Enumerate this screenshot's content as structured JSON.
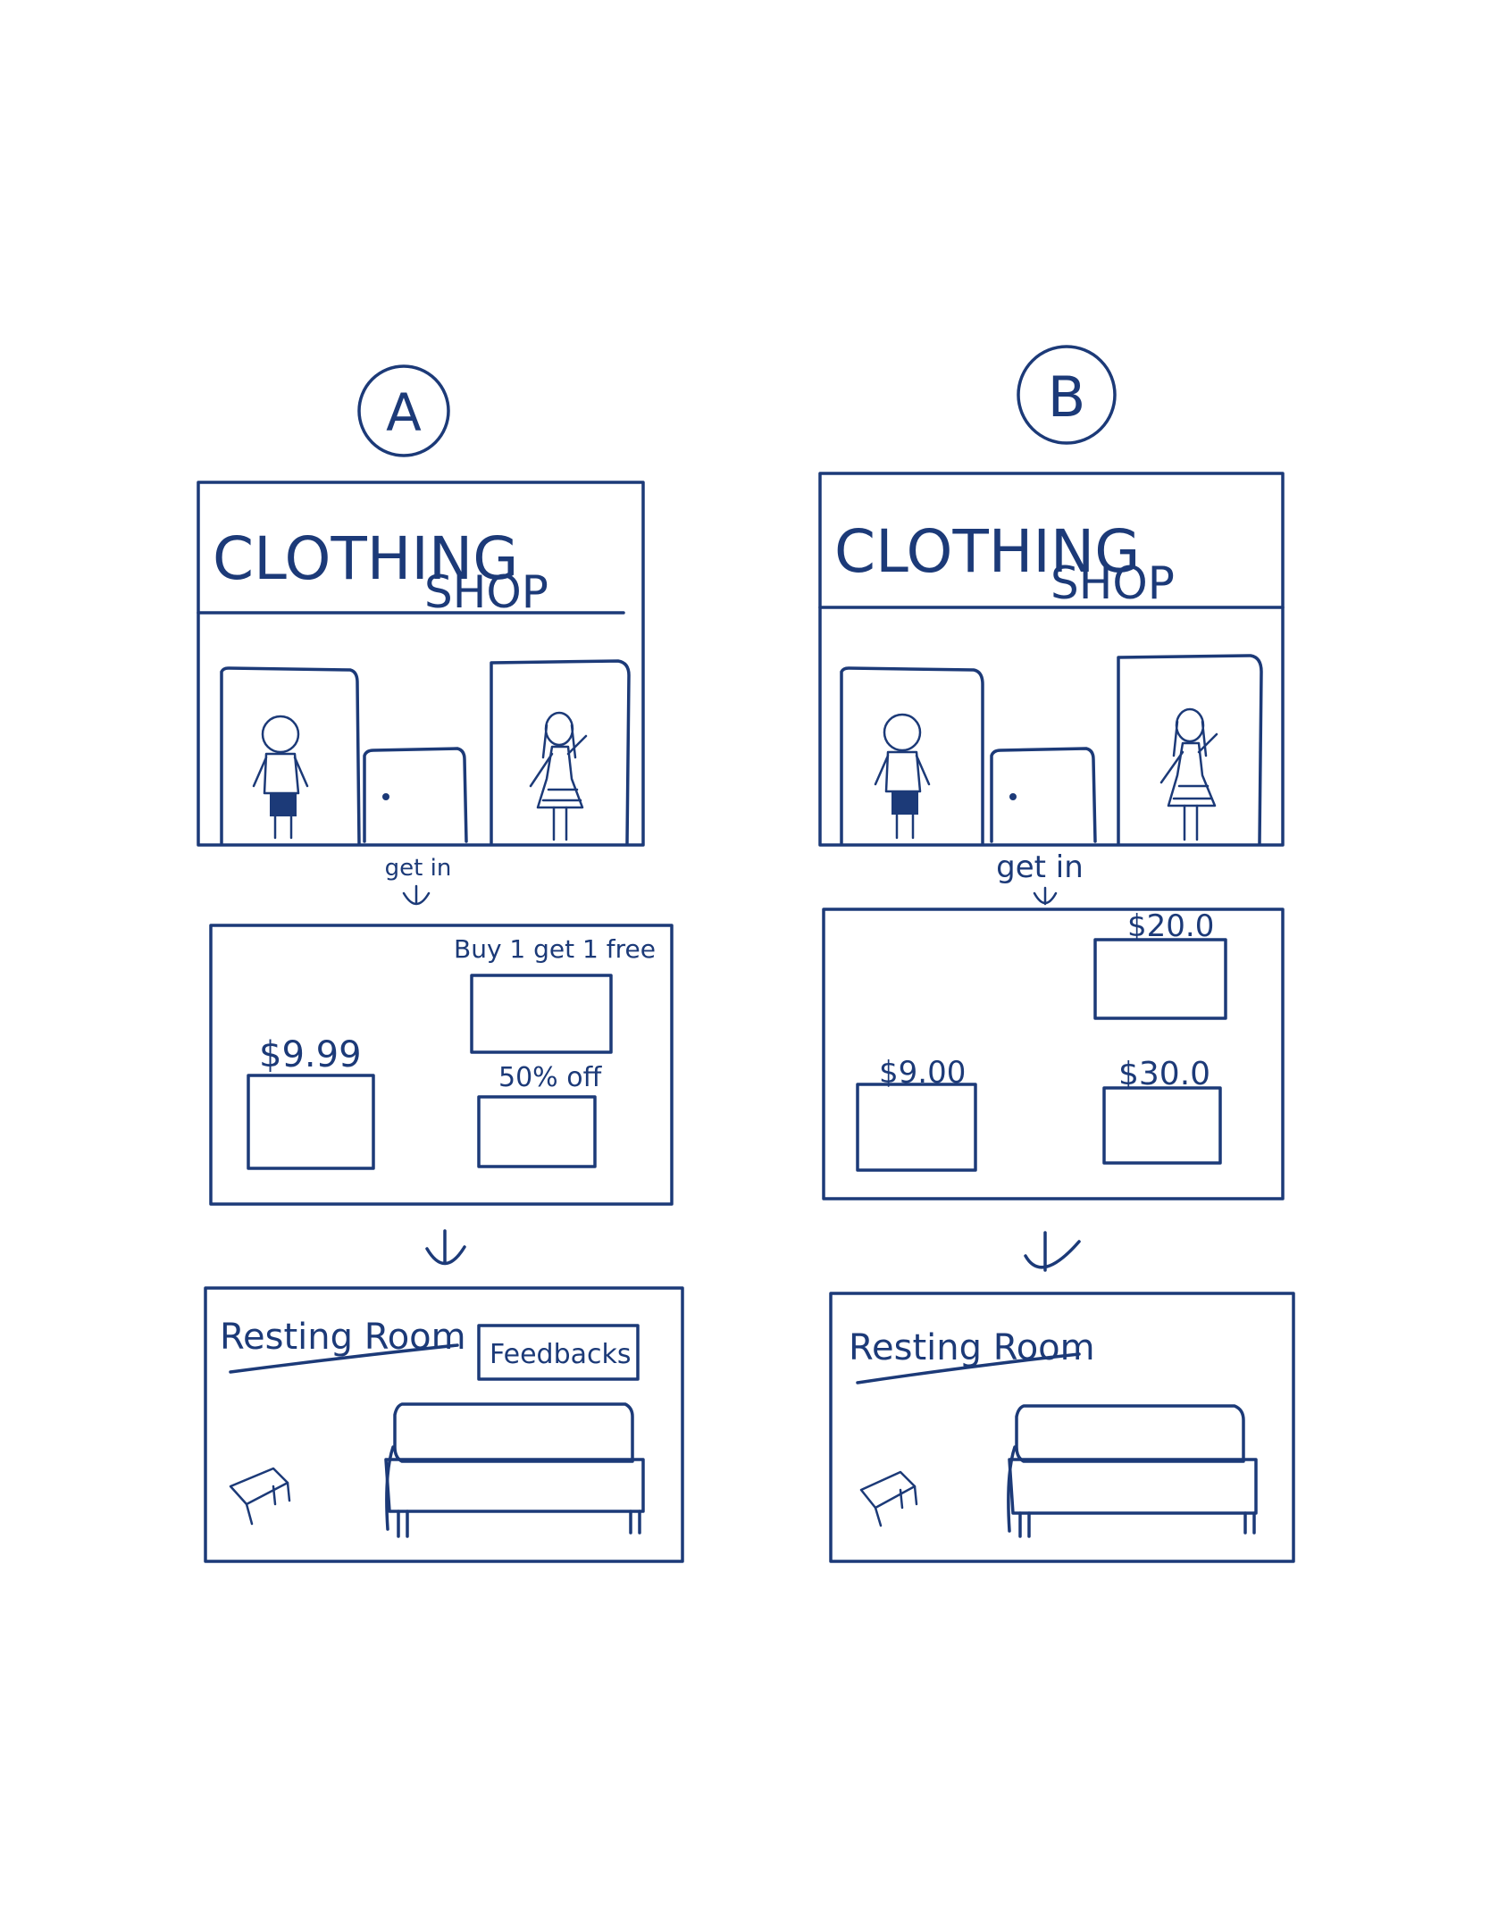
{
  "storyboard_a": {
    "label": "A",
    "shop_sign_line1": "CLOTHING",
    "shop_sign_line2": "SHOP",
    "transition_label": "get in",
    "products": [
      {
        "tag": "$9.99"
      },
      {
        "tag": "Buy 1 get 1 free"
      },
      {
        "tag": "50% off"
      }
    ],
    "room_title": "Resting Room",
    "feedback_label": "Feedbacks"
  },
  "storyboard_b": {
    "label": "B",
    "shop_sign_line1": "CLOTHING",
    "shop_sign_line2": "SHOP",
    "transition_label": "get in",
    "products": [
      {
        "tag": "$20.0"
      },
      {
        "tag": "$9.00"
      },
      {
        "tag": "$30.0"
      }
    ],
    "room_title": "Resting Room"
  },
  "colors": {
    "ink": "#1c3a78",
    "paper": "#ffffff"
  }
}
